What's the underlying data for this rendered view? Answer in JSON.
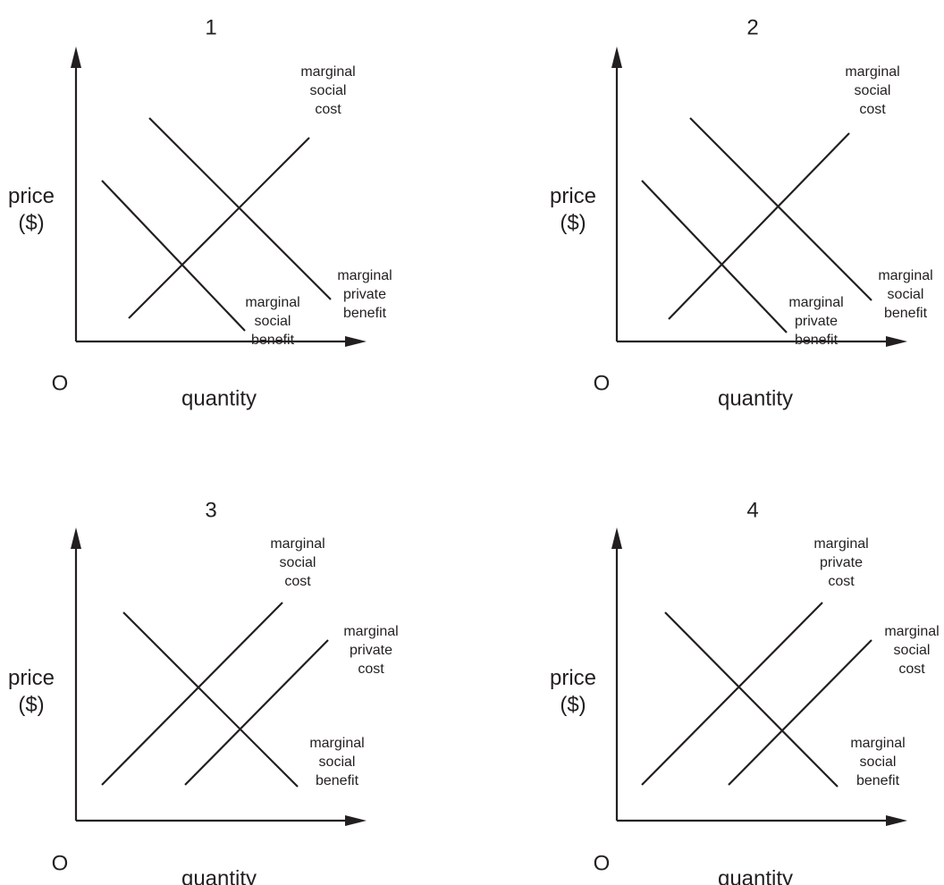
{
  "style": {
    "ink_color": "#231f20",
    "background_color": "#ffffff"
  },
  "panels": [
    {
      "number": "1",
      "y_axis_label": [
        "price",
        "($)"
      ],
      "origin_label": "O",
      "x_axis_label": "quantity",
      "curves": [
        {
          "label": [
            "marginal",
            "social",
            "cost"
          ]
        },
        {
          "label": [
            "marginal",
            "private",
            "benefit"
          ]
        },
        {
          "label": [
            "marginal",
            "social",
            "benefit"
          ]
        }
      ]
    },
    {
      "number": "2",
      "y_axis_label": [
        "price",
        "($)"
      ],
      "origin_label": "O",
      "x_axis_label": "quantity",
      "curves": [
        {
          "label": [
            "marginal",
            "social",
            "cost"
          ]
        },
        {
          "label": [
            "marginal",
            "social",
            "benefit"
          ]
        },
        {
          "label": [
            "marginal",
            "private",
            "benefit"
          ]
        }
      ]
    },
    {
      "number": "3",
      "y_axis_label": [
        "price",
        "($)"
      ],
      "origin_label": "O",
      "x_axis_label": "quantity",
      "curves": [
        {
          "label": [
            "marginal",
            "social",
            "cost"
          ]
        },
        {
          "label": [
            "marginal",
            "private",
            "cost"
          ]
        },
        {
          "label": [
            "marginal",
            "social",
            "benefit"
          ]
        }
      ]
    },
    {
      "number": "4",
      "y_axis_label": [
        "price",
        "($)"
      ],
      "origin_label": "O",
      "x_axis_label": "quantity",
      "curves": [
        {
          "label": [
            "marginal",
            "private",
            "cost"
          ]
        },
        {
          "label": [
            "marginal",
            "social",
            "cost"
          ]
        },
        {
          "label": [
            "marginal",
            "social",
            "benefit"
          ]
        }
      ]
    }
  ]
}
